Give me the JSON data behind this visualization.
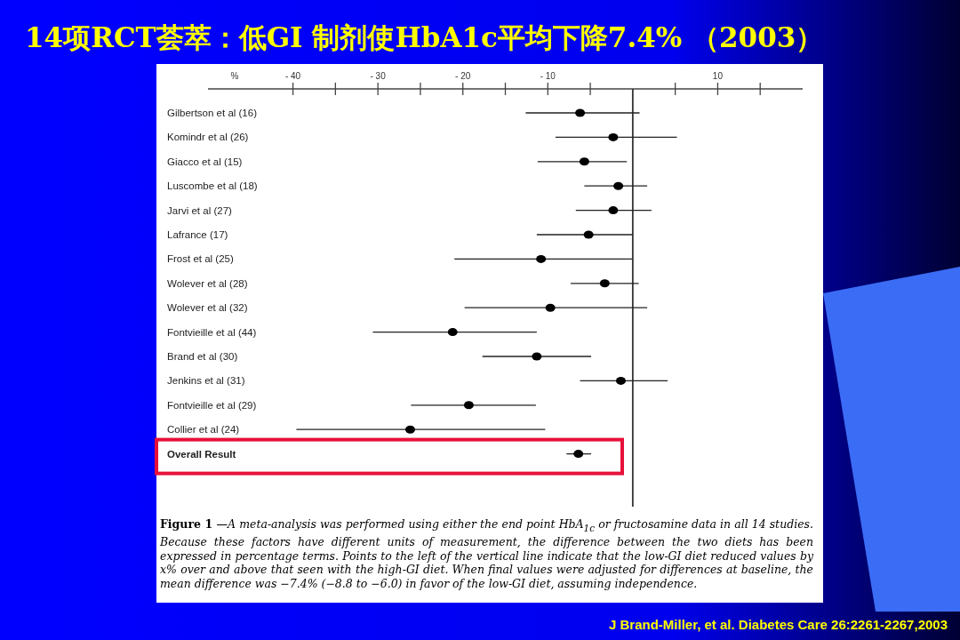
{
  "chart_data": {
    "type": "scatter",
    "orientation": "horizontal",
    "title": "14项RCT荟萃：低GI 制剂使HbA1c平均下降7.4% （2003）",
    "xlabel": "%",
    "categories": [
      "Gilbertson et al (16)",
      "Komindr et al (26)",
      "Giacco et al (15)",
      "Luscombe et al (18)",
      "Jarvi et al (27)",
      "Lafrance (17)",
      "Frost et al (25)",
      "Wolever et al (28)",
      "Wolever et al (32)",
      "Fontvieille et al (44)",
      "Brand et al  (30)",
      "Jenkins et al  (31)",
      "Fontvieille et al  (29)",
      "Collier et al (24)",
      "Overall Result"
    ],
    "series": [
      {
        "color": "#000000",
        "values": [
          -6.2,
          -2.3,
          -5.7,
          -1.7,
          -2.3,
          -5.2,
          -10.8,
          -3.3,
          -9.7,
          -21.2,
          -11.3,
          -1.4,
          -19.3,
          -26.2,
          -6.4
        ],
        "errors": [
          [
            -12.6,
            0.8
          ],
          [
            -9.1,
            5.2
          ],
          [
            -11.2,
            -0.7
          ],
          [
            -5.7,
            1.7
          ],
          [
            -6.7,
            2.2
          ],
          [
            -11.3,
            0
          ],
          [
            -21.0,
            0
          ],
          [
            -7.3,
            0.7
          ],
          [
            -19.8,
            1.7
          ],
          [
            -30.6,
            -11.3
          ],
          [
            -17.7,
            -4.9
          ],
          [
            -6.2,
            4.1
          ],
          [
            -26.1,
            -11.4
          ],
          [
            -39.6,
            -10.3
          ],
          [
            -7.8,
            -4.9
          ]
        ]
      }
    ],
    "marker": "circle",
    "xlim": [
      -50,
      20
    ],
    "xticks": [
      {
        "value": -40,
        "label": "- 40"
      },
      {
        "value": -35,
        "label": null
      },
      {
        "value": -30,
        "label": "- 30"
      },
      {
        "value": -25,
        "label": null
      },
      {
        "value": -20,
        "label": "- 20"
      },
      {
        "value": -15,
        "label": null
      },
      {
        "value": -10,
        "label": "- 10"
      },
      {
        "value": -5,
        "label": null
      },
      {
        "value": 5,
        "label": null
      },
      10,
      {
        "value": 15,
        "label": null
      }
    ],
    "ref_lines": [
      {
        "axis": "x",
        "value": 0,
        "color": "#333333"
      }
    ],
    "annotations": [
      "Figure 1 —A meta-analysis was performed using either the end point HbA$_{1c}$ or fructosamine data in all 14 studies. Because these factors have different units of measurement, the difference between the two diets has been expressed in percentage terms. Points to the left of the vertical line indicate that the low-GI diet reduced values by x% over and above that seen with the high-GI diet. When final values were adjusted for differences at baseline, the mean difference was −7.4% (−8.8 to −6.0) in favor of the low-GI diet, assuming independence.",
      "J Brand-Miller, et al. Diabetes Care 26:2261-2267,2003"
    ]
  }
}
